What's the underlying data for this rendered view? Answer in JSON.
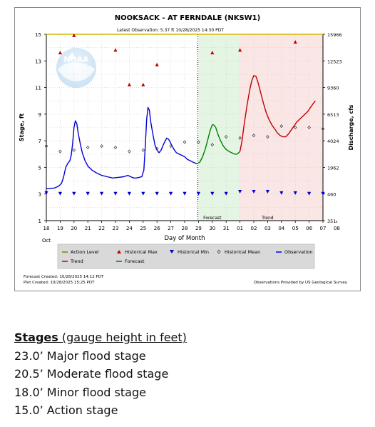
{
  "chart_data": {
    "type": "line",
    "title": "NOOKSACK - AT FERNDALE  (NKSW1)",
    "latest_observation": "Latest Observation: 5.37 ft 10/28/2025 14:30 PDT",
    "ylabel_left": "Stage, ft",
    "ylabel_right": "Discharge, cfs",
    "xlabel": "Day of Month",
    "month_label": "Oct",
    "ylim": [
      1,
      15
    ],
    "left_ticks": [
      "15",
      "13",
      "11",
      "9",
      "7",
      "5",
      "3",
      "1"
    ],
    "right_ticks": [
      "15966",
      "12523",
      "9360",
      "6513",
      "4024",
      "1962",
      "460",
      "351"
    ],
    "x_ticks": [
      "18",
      "19",
      "20",
      "21",
      "22",
      "23",
      "24",
      "25",
      "26",
      "27",
      "28",
      "29",
      "30",
      "31",
      "01",
      "02",
      "03",
      "04",
      "05",
      "06",
      "07",
      "08"
    ],
    "action_level": 15,
    "forecast_region_label": "Forecast",
    "trend_region_label": "Trend",
    "legend": [
      {
        "name": "Action Level",
        "symbol": "line",
        "color": "#6b8e00"
      },
      {
        "name": "Historical Max",
        "symbol": "triangle-up",
        "color": "#c00000"
      },
      {
        "name": "Historical Min",
        "symbol": "triangle-down",
        "color": "#0000c8"
      },
      {
        "name": "Historical Mean",
        "symbol": "diamond",
        "color": "#333333"
      },
      {
        "name": "Observation",
        "symbol": "line",
        "color": "#0000dd"
      },
      {
        "name": "Trend",
        "symbol": "line",
        "color": "#c00000"
      },
      {
        "name": "Forecast",
        "symbol": "line",
        "color": "#008000"
      }
    ],
    "series": [
      {
        "name": "Observation",
        "color": "#0000dd",
        "x": [
          18.0,
          18.6,
          18.9,
          19.1,
          19.25,
          19.4,
          19.55,
          19.7,
          19.8,
          19.9,
          20.0,
          20.1,
          20.2,
          20.3,
          20.45,
          20.6,
          20.8,
          21.0,
          21.3,
          21.6,
          22.0,
          22.4,
          22.8,
          23.2,
          23.6,
          23.9,
          24.1,
          24.2,
          24.35,
          24.5,
          24.7,
          24.9,
          25.05,
          25.15,
          25.25,
          25.35,
          25.45,
          25.55,
          25.7,
          25.85,
          26.0,
          26.15,
          26.3,
          26.5,
          26.7,
          26.85,
          27.0,
          27.2,
          27.4,
          27.6,
          27.8,
          28.0,
          28.2,
          28.4,
          28.6,
          28.8,
          28.95
        ],
        "y": [
          3.4,
          3.45,
          3.6,
          3.8,
          4.3,
          5.0,
          5.3,
          5.5,
          5.9,
          6.8,
          8.0,
          8.5,
          8.3,
          7.6,
          6.8,
          6.1,
          5.5,
          5.1,
          4.8,
          4.6,
          4.4,
          4.3,
          4.2,
          4.25,
          4.3,
          4.4,
          4.3,
          4.25,
          4.2,
          4.2,
          4.25,
          4.3,
          4.8,
          6.5,
          8.6,
          9.5,
          9.3,
          8.4,
          7.5,
          6.7,
          6.3,
          6.1,
          6.3,
          6.8,
          7.2,
          7.1,
          6.8,
          6.4,
          6.1,
          6.0,
          5.9,
          5.8,
          5.6,
          5.5,
          5.4,
          5.3,
          5.3
        ]
      },
      {
        "name": "Forecast",
        "color": "#008000",
        "x": [
          28.95,
          29.1,
          29.3,
          29.5,
          29.7,
          29.85,
          30.0,
          30.1,
          30.25,
          30.4,
          30.6,
          30.8,
          31.0,
          31.2,
          31.4,
          31.6,
          31.8,
          32.0
        ],
        "y": [
          5.3,
          5.4,
          5.8,
          6.4,
          7.2,
          7.8,
          8.2,
          8.2,
          8.0,
          7.5,
          7.0,
          6.6,
          6.35,
          6.2,
          6.1,
          6.0,
          6.0,
          6.2
        ]
      },
      {
        "name": "Trend",
        "color": "#c00000",
        "x": [
          32.0,
          32.15,
          32.3,
          32.5,
          32.7,
          32.85,
          33.0,
          33.15,
          33.3,
          33.5,
          33.7,
          33.9,
          34.1,
          34.3,
          34.5,
          34.7,
          34.9,
          35.1,
          35.3,
          35.5,
          35.7,
          35.9,
          36.1,
          36.3,
          36.5,
          36.7,
          36.9,
          37.1,
          37.3,
          37.45
        ],
        "y": [
          6.2,
          7.0,
          8.2,
          9.6,
          10.8,
          11.5,
          11.9,
          11.85,
          11.4,
          10.6,
          9.8,
          9.1,
          8.6,
          8.2,
          7.9,
          7.6,
          7.4,
          7.3,
          7.3,
          7.5,
          7.8,
          8.1,
          8.4,
          8.6,
          8.8,
          9.0,
          9.2,
          9.5,
          9.8,
          10.0
        ]
      }
    ],
    "historical_max": [
      {
        "x": 19,
        "y": 13.6
      },
      {
        "x": 20,
        "y": 14.9
      },
      {
        "x": 23,
        "y": 13.8
      },
      {
        "x": 24,
        "y": 11.2
      },
      {
        "x": 25,
        "y": 11.2
      },
      {
        "x": 26,
        "y": 12.7
      },
      {
        "x": 30,
        "y": 13.6
      },
      {
        "x": 32,
        "y": 13.8
      },
      {
        "x": 36,
        "y": 14.4
      }
    ],
    "historical_mean": [
      {
        "x": 18,
        "y": 6.6
      },
      {
        "x": 19,
        "y": 6.2
      },
      {
        "x": 20,
        "y": 6.3
      },
      {
        "x": 21,
        "y": 6.5
      },
      {
        "x": 22,
        "y": 6.6
      },
      {
        "x": 23,
        "y": 6.5
      },
      {
        "x": 24,
        "y": 6.2
      },
      {
        "x": 25,
        "y": 6.3
      },
      {
        "x": 26,
        "y": 6.4
      },
      {
        "x": 27,
        "y": 6.6
      },
      {
        "x": 28,
        "y": 6.9
      },
      {
        "x": 29,
        "y": 6.9
      },
      {
        "x": 30,
        "y": 6.7
      },
      {
        "x": 31,
        "y": 7.3
      },
      {
        "x": 32,
        "y": 7.2
      },
      {
        "x": 33,
        "y": 7.4
      },
      {
        "x": 34,
        "y": 7.3
      },
      {
        "x": 35,
        "y": 8.1
      },
      {
        "x": 36,
        "y": 8.0
      },
      {
        "x": 37,
        "y": 8.0
      },
      {
        "x": 38,
        "y": 7.9
      }
    ],
    "historical_min": [
      {
        "x": 18,
        "y": 3.1
      },
      {
        "x": 19,
        "y": 3.05
      },
      {
        "x": 20,
        "y": 3.05
      },
      {
        "x": 21,
        "y": 3.05
      },
      {
        "x": 22,
        "y": 3.05
      },
      {
        "x": 23,
        "y": 3.05
      },
      {
        "x": 24,
        "y": 3.05
      },
      {
        "x": 25,
        "y": 3.05
      },
      {
        "x": 26,
        "y": 3.05
      },
      {
        "x": 27,
        "y": 3.05
      },
      {
        "x": 28,
        "y": 3.05
      },
      {
        "x": 29,
        "y": 3.05
      },
      {
        "x": 30,
        "y": 3.05
      },
      {
        "x": 31,
        "y": 3.05
      },
      {
        "x": 32,
        "y": 3.2
      },
      {
        "x": 33,
        "y": 3.2
      },
      {
        "x": 34,
        "y": 3.2
      },
      {
        "x": 35,
        "y": 3.1
      },
      {
        "x": 36,
        "y": 3.1
      },
      {
        "x": 37,
        "y": 3.05
      },
      {
        "x": 38,
        "y": 3.05
      }
    ],
    "forecast_span": [
      29,
      32
    ],
    "trend_span": [
      32,
      38
    ],
    "now_line_x": 28.95,
    "forecast_created": "Forecast Created:  10/28/2025 14:12 PDT",
    "plot_created": "Plot Created:   10/28/2025 15:25 PDT",
    "credit": "Observations Provided by US Geological Survey",
    "watermark": "NOAA"
  },
  "stages": {
    "heading_bold": "Stages",
    "heading_rest": " (gauge height in feet)",
    "items": [
      "23.0’ Major flood stage",
      "20.5’ Moderate flood stage",
      "18.0’ Minor flood stage",
      "15.0’ Action stage"
    ]
  }
}
